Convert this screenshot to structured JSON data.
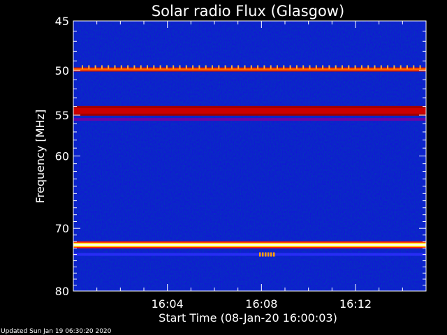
{
  "chart_data": {
    "type": "heatmap",
    "title": "Solar radio Flux (Glasgow)",
    "xlabel": "Start Time (08-Jan-20 16:00:03)",
    "ylabel": "Frequency [MHz]",
    "x_unit": "minutes after 16:00:03",
    "xlim": [
      0,
      15
    ],
    "ylim": [
      45,
      80
    ],
    "x_ticks": [
      {
        "label": "16:04",
        "value": 4
      },
      {
        "label": "16:08",
        "value": 8
      },
      {
        "label": "16:12",
        "value": 12
      }
    ],
    "y_ticks": [
      {
        "label": "45",
        "value": 45
      },
      {
        "label": "50",
        "value": 50
      },
      {
        "label": "55",
        "value": 55
      },
      {
        "label": "60",
        "value": 60
      },
      {
        "label": "70",
        "value": 70
      },
      {
        "label": "80",
        "value": 80
      }
    ],
    "y_minor_ticks": [
      46,
      47,
      48,
      49,
      51,
      52,
      53,
      54,
      56,
      57,
      58,
      59,
      61,
      62,
      63,
      64,
      65,
      66,
      67,
      68,
      69,
      71,
      72,
      73,
      74,
      75,
      76,
      77,
      78,
      79
    ],
    "x_minor_ticks": [
      1,
      2,
      3,
      5,
      6,
      7,
      9,
      10,
      11,
      13,
      14
    ],
    "colormap": [
      "#000080",
      "#0000ff",
      "#ff0000",
      "#ffff00",
      "#ffffff"
    ],
    "features": [
      {
        "kind": "band",
        "freq": 49.9,
        "intensity": "high",
        "color": "#ff6a00"
      },
      {
        "kind": "band",
        "freq": 54.5,
        "intensity": "medium",
        "color": "#cc0000"
      },
      {
        "kind": "band",
        "freq": 72.5,
        "intensity": "very-high",
        "color": "#ffffa0"
      },
      {
        "kind": "weak-band",
        "freq": 55.5,
        "color": "#7a00a0"
      },
      {
        "kind": "weak-band",
        "freq": 74.0,
        "color": "#3030ff"
      },
      {
        "kind": "burst",
        "freq": 74.0,
        "time_start": 7.9,
        "time_end": 8.6,
        "color": "#ffa000"
      }
    ]
  },
  "footer_text": "Updated Sun Jan 19 06:30:20 2020"
}
